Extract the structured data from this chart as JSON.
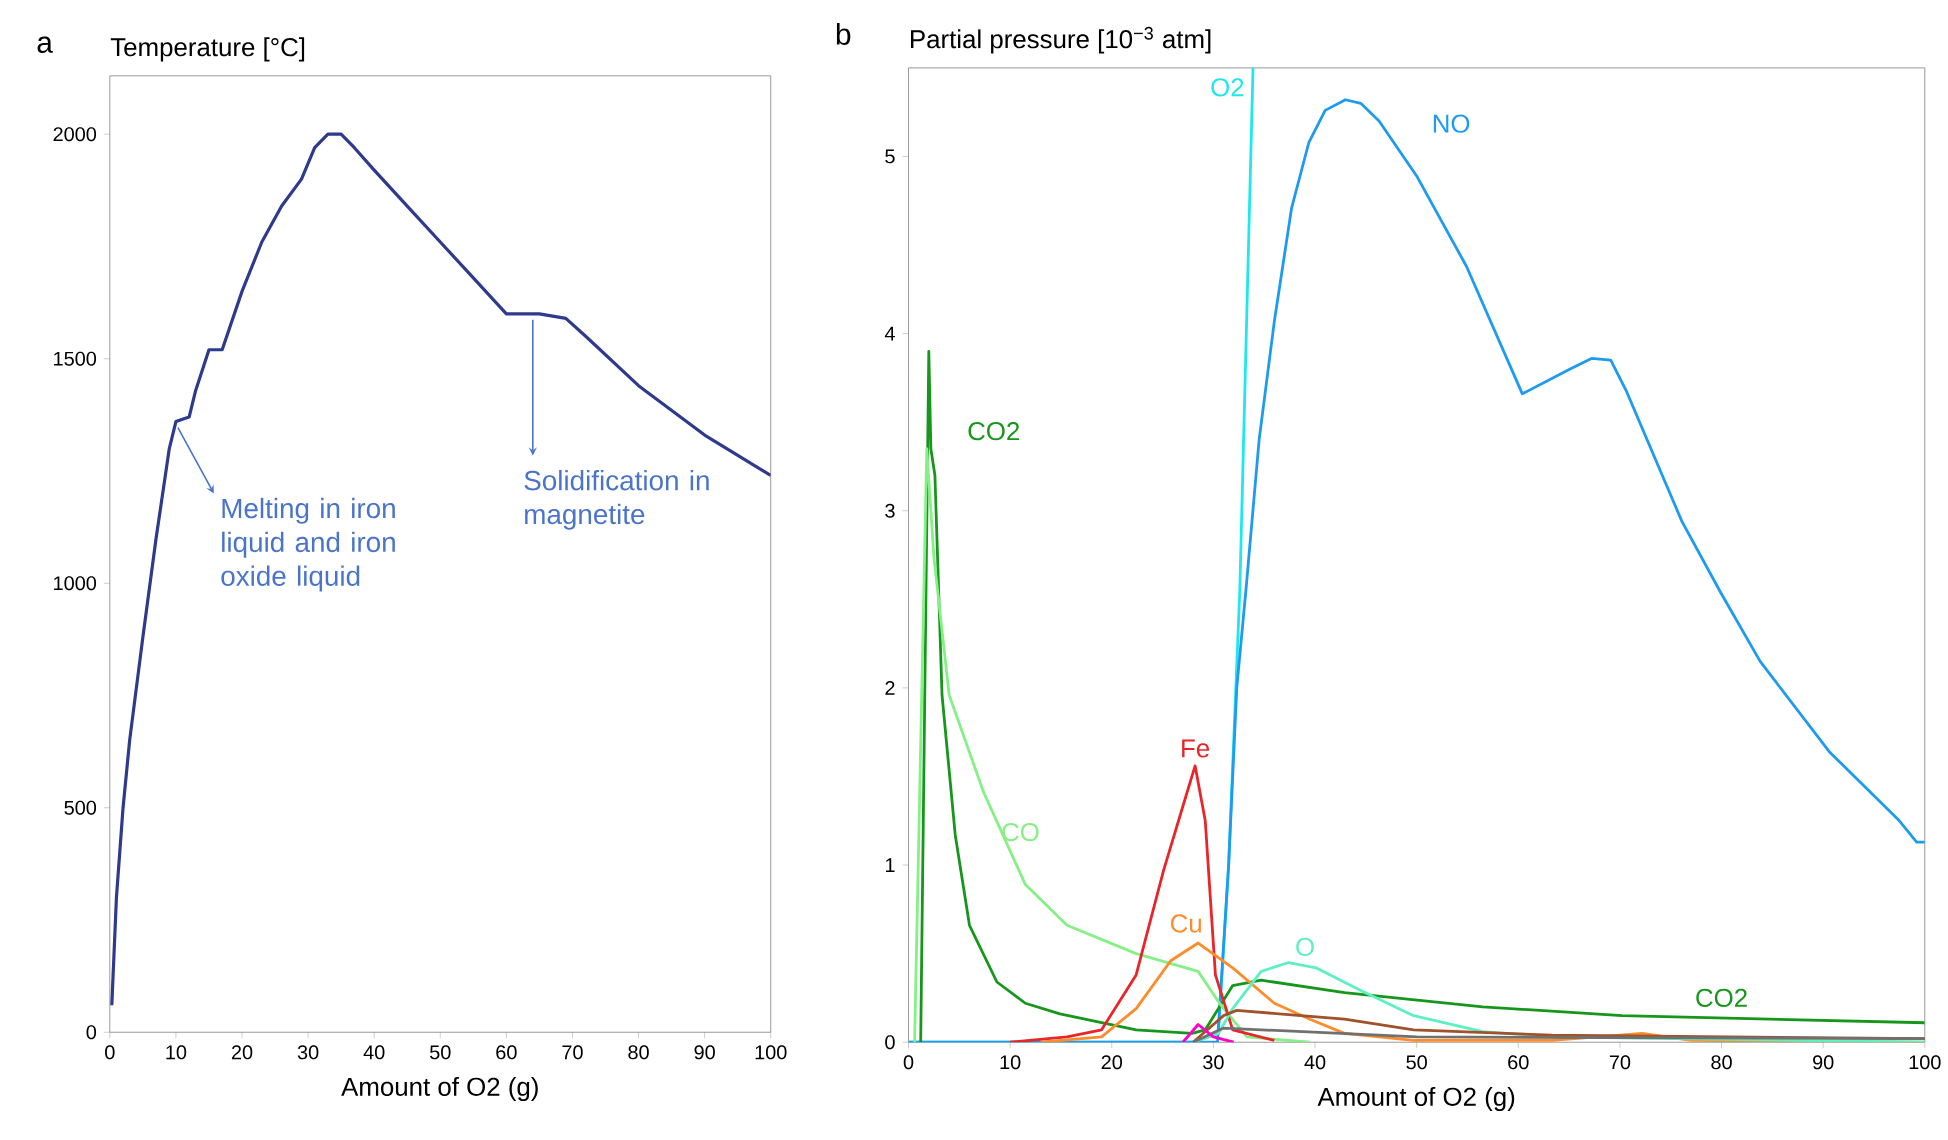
{
  "chart_data": [
    {
      "type": "line",
      "title": "a",
      "ylabel": "Temperature [°C]",
      "xlabel": "Amount of O2 (g)",
      "xlim": [
        0,
        100
      ],
      "ylim": [
        0,
        2130
      ],
      "xticks": [
        0,
        10,
        20,
        30,
        40,
        50,
        60,
        70,
        80,
        90,
        100
      ],
      "yticks": [
        0,
        500,
        1000,
        1500,
        2000
      ],
      "series": [
        {
          "color": "#2e3a8c",
          "x": [
            0.3,
            1,
            2,
            3,
            5,
            7,
            9,
            10,
            12,
            13,
            15,
            17,
            20,
            23,
            26,
            29,
            31,
            33,
            35,
            37,
            40,
            45,
            50,
            55,
            60,
            65,
            69,
            72,
            80,
            90,
            100
          ],
          "values": [
            60,
            300,
            500,
            650,
            880,
            1100,
            1300,
            1360,
            1370,
            1430,
            1520,
            1520,
            1650,
            1760,
            1840,
            1900,
            1970,
            2000,
            2000,
            1970,
            1920,
            1840,
            1760,
            1680,
            1600,
            1600,
            1590,
            1550,
            1440,
            1330,
            1240
          ]
        }
      ],
      "annotations": [
        {
          "text": "Melting in iron liquid and iron oxide liquid",
          "x": 10,
          "y": 1360
        },
        {
          "text": "Solidification in magnetite",
          "x": 64,
          "y": 1600
        }
      ]
    },
    {
      "type": "line",
      "title": "b",
      "ylabel": "Partial pressure [10$^{−3}$ atm]",
      "xlabel": "Amount of O2 (g)",
      "xlim": [
        0,
        100
      ],
      "ylim": [
        0,
        5.5
      ],
      "xticks": [
        0,
        10,
        20,
        30,
        40,
        50,
        60,
        70,
        80,
        90,
        100
      ],
      "yticks": [
        0,
        1,
        2,
        3,
        4,
        5
      ],
      "series": [
        {
          "name": "O2",
          "color": "#1ee8ee",
          "x": [
            0,
            28,
            30.5,
            31.5,
            32.6,
            33.9
          ],
          "values": [
            0,
            0,
            0.05,
            1.0,
            2.55,
            5.5
          ]
        },
        {
          "name": "NO",
          "color": "#1e9bf0",
          "x": [
            0,
            30,
            30.4,
            31.5,
            32.3,
            33.2,
            34.5,
            36.0,
            37.7,
            39.4,
            41.0,
            43.0,
            44.5,
            46.3,
            50.0,
            54.9,
            60.4,
            65.1,
            67.2,
            69.1,
            70.6,
            76.1,
            79.9,
            83.8,
            90.6,
            97.5,
            99.2,
            100
          ],
          "values": [
            0,
            0,
            0,
            1.0,
            2.0,
            2.55,
            3.4,
            4.07,
            4.71,
            5.08,
            5.26,
            5.32,
            5.3,
            5.2,
            4.89,
            4.38,
            3.66,
            3.8,
            3.86,
            3.85,
            3.68,
            2.94,
            2.54,
            2.15,
            1.64,
            1.25,
            1.13,
            1.13
          ]
        },
        {
          "name": "CO2",
          "color": "#17961c",
          "x": [
            1.2,
            2,
            2.2,
            2.6,
            3.3,
            4.6,
            6.0,
            8.7,
            11.5,
            14.9,
            22.4,
            27.9,
            29.2,
            31.9,
            34.7,
            42.9,
            56.5,
            70.2,
            100
          ],
          "values": [
            0,
            3.9,
            3.35,
            3.2,
            1.96,
            1.17,
            0.66,
            0.34,
            0.22,
            0.16,
            0.07,
            0.05,
            0.07,
            0.32,
            0.35,
            0.28,
            0.2,
            0.15,
            0.11
          ]
        },
        {
          "name": "CO",
          "color": "#86ef86",
          "x": [
            0.6,
            1.8,
            2.5,
            4.0,
            7.4,
            11.5,
            15.6,
            22.4,
            28.5,
            30.6,
            33.3,
            39.5
          ],
          "values": [
            0,
            3.35,
            2.74,
            1.96,
            1.41,
            0.89,
            0.66,
            0.5,
            0.4,
            0.22,
            0.03,
            0
          ]
        },
        {
          "name": "Fe",
          "color": "#e8262a",
          "x": [
            10,
            15.6,
            19,
            22.4,
            25.1,
            27.2,
            28.2,
            29.2,
            30.2,
            31.9,
            36
          ],
          "values": [
            0,
            0.03,
            0.07,
            0.38,
            0.97,
            1.37,
            1.56,
            1.25,
            0.38,
            0.07,
            0.01
          ]
        },
        {
          "name": "Cu",
          "color": "#ff8c2a",
          "x": [
            13,
            19,
            22.4,
            25.8,
            28.5,
            31.9,
            36,
            39.5,
            42.9,
            49.7,
            63.3,
            72.2,
            77,
            100
          ],
          "values": [
            0,
            0.03,
            0.19,
            0.46,
            0.56,
            0.42,
            0.22,
            0.13,
            0.05,
            0.01,
            0.01,
            0.05,
            0.01,
            0
          ]
        },
        {
          "name": "O",
          "color": "#5ef0c0",
          "x": [
            28,
            30.5,
            31.9,
            34.7,
            37.4,
            40.1,
            44.2,
            49.7,
            56.5,
            63.3,
            100
          ],
          "values": [
            0,
            0.05,
            0.19,
            0.4,
            0.45,
            0.42,
            0.3,
            0.15,
            0.06,
            0.03,
            0
          ]
        },
        {
          "color": "#a0522d",
          "x": [
            28,
            31,
            32.3,
            42.9,
            49.7,
            63.3,
            100
          ],
          "values": [
            0,
            0.15,
            0.18,
            0.13,
            0.07,
            0.04,
            0.02
          ]
        },
        {
          "color": "#707070",
          "x": [
            28,
            31,
            50,
            100
          ],
          "values": [
            0,
            0.08,
            0.03,
            0.02
          ]
        },
        {
          "color": "#ff00cc",
          "x": [
            27,
            28.5,
            30,
            32
          ],
          "values": [
            0,
            0.1,
            0.03,
            0
          ]
        }
      ],
      "annotations": [
        {
          "text": "CO2",
          "x": 80,
          "y": 0.14
        }
      ]
    }
  ]
}
